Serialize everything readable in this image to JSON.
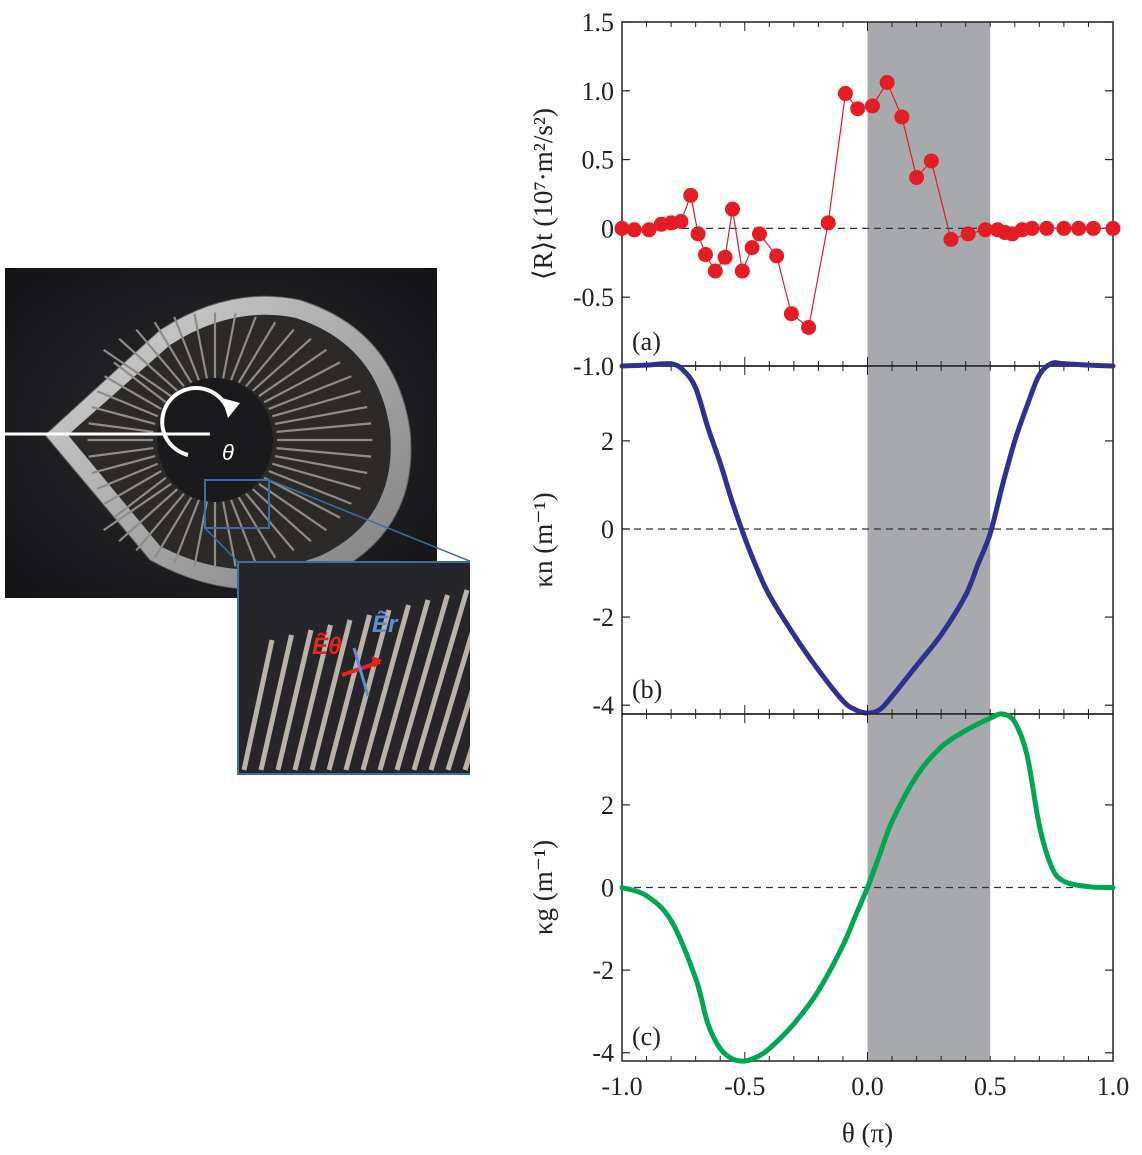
{
  "photo": {
    "theta_label": "θ",
    "inset_label_theta": "Ẽθ",
    "inset_label_r": "Ẽr",
    "colors": {
      "background": "#2a2a2e",
      "ring": "#b8b8b8",
      "rods": "#9a9690",
      "theta_arrow": "#ffffff",
      "e_theta": "#e8231c",
      "e_r": "#5b8fd6",
      "inset_frame": "#3a6ea5"
    }
  },
  "chart_data": [
    {
      "type": "scatter",
      "panel_label": "(a)",
      "ylabel": "⟨R⟩t (10⁷·m²/s²)",
      "xlim": [
        -1.0,
        1.0
      ],
      "ylim": [
        -1.0,
        1.5
      ],
      "yticks": [
        "-1.0",
        "-0.5",
        "0",
        "0.5",
        "1.0",
        "1.5"
      ],
      "ytick_values": [
        -1.0,
        -0.5,
        0,
        0.5,
        1.0,
        1.5
      ],
      "shaded_region": [
        0.0,
        0.5
      ],
      "zero_line": true,
      "color": "#e41c23",
      "x": [
        -1.0,
        -0.95,
        -0.89,
        -0.84,
        -0.8,
        -0.76,
        -0.72,
        -0.69,
        -0.66,
        -0.62,
        -0.58,
        -0.55,
        -0.51,
        -0.47,
        -0.44,
        -0.37,
        -0.31,
        -0.24,
        -0.16,
        -0.09,
        -0.04,
        0.02,
        0.08,
        0.14,
        0.2,
        0.26,
        0.34,
        0.41,
        0.48,
        0.53,
        0.56,
        0.59,
        0.63,
        0.67,
        0.73,
        0.8,
        0.86,
        0.92,
        1.0
      ],
      "y": [
        0.0,
        -0.01,
        -0.01,
        0.03,
        0.04,
        0.05,
        0.24,
        -0.04,
        -0.19,
        -0.31,
        -0.21,
        0.14,
        -0.31,
        -0.14,
        -0.04,
        -0.2,
        -0.62,
        -0.72,
        0.04,
        0.98,
        0.87,
        0.89,
        1.06,
        0.81,
        0.37,
        0.49,
        -0.08,
        -0.04,
        -0.01,
        -0.01,
        -0.03,
        -0.04,
        -0.01,
        0.0,
        0.0,
        0.0,
        0.0,
        0.0,
        0.0
      ]
    },
    {
      "type": "line",
      "panel_label": "(b)",
      "ylabel": "κn (m⁻¹)",
      "xlim": [
        -1.0,
        1.0
      ],
      "ylim": [
        -4.2,
        3.7
      ],
      "yticks": [
        "-4",
        "-2",
        "0",
        "2"
      ],
      "ytick_values": [
        -4,
        -2,
        0,
        2
      ],
      "shaded_region": [
        0.0,
        0.5
      ],
      "zero_line": true,
      "color": "#2e3192",
      "x": [
        -1.0,
        -0.9,
        -0.8,
        -0.75,
        -0.7,
        -0.65,
        -0.6,
        -0.55,
        -0.5,
        -0.45,
        -0.4,
        -0.3,
        -0.2,
        -0.1,
        -0.05,
        0.0,
        0.05,
        0.1,
        0.2,
        0.3,
        0.4,
        0.45,
        0.5,
        0.55,
        0.6,
        0.65,
        0.7,
        0.75,
        0.8,
        0.9,
        1.0
      ],
      "y": [
        3.7,
        3.72,
        3.75,
        3.6,
        3.2,
        2.3,
        1.5,
        0.6,
        -0.2,
        -0.9,
        -1.5,
        -2.4,
        -3.2,
        -3.9,
        -4.1,
        -4.18,
        -4.1,
        -3.8,
        -3.1,
        -2.4,
        -1.5,
        -0.8,
        -0.1,
        1.0,
        2.0,
        2.8,
        3.5,
        3.76,
        3.75,
        3.72,
        3.7
      ]
    },
    {
      "type": "line",
      "panel_label": "(c)",
      "ylabel": "κg (m⁻¹)",
      "xlabel": "θ (π)",
      "xlim": [
        -1.0,
        1.0
      ],
      "ylim": [
        -4.2,
        4.2
      ],
      "xticks": [
        "-1.0",
        "-0.5",
        "0.0",
        "0.5",
        "1.0"
      ],
      "xtick_values": [
        -1.0,
        -0.5,
        0.0,
        0.5,
        1.0
      ],
      "yticks": [
        "-4",
        "-2",
        "0",
        "2"
      ],
      "ytick_values": [
        -4,
        -2,
        0,
        2
      ],
      "shaded_region": [
        0.0,
        0.5
      ],
      "zero_line": true,
      "color": "#00a651",
      "x": [
        -1.0,
        -0.9,
        -0.8,
        -0.7,
        -0.65,
        -0.6,
        -0.55,
        -0.5,
        -0.45,
        -0.4,
        -0.3,
        -0.2,
        -0.1,
        -0.05,
        0.0,
        0.05,
        0.1,
        0.2,
        0.3,
        0.4,
        0.5,
        0.55,
        0.6,
        0.65,
        0.7,
        0.75,
        0.8,
        0.9,
        1.0
      ],
      "y": [
        0.0,
        -0.2,
        -0.8,
        -2.2,
        -3.3,
        -3.9,
        -4.15,
        -4.2,
        -4.1,
        -3.9,
        -3.3,
        -2.5,
        -1.4,
        -0.7,
        0.0,
        0.8,
        1.6,
        2.7,
        3.4,
        3.8,
        4.1,
        4.2,
        4.0,
        3.2,
        1.5,
        0.5,
        0.15,
        0.02,
        0.0
      ]
    }
  ]
}
